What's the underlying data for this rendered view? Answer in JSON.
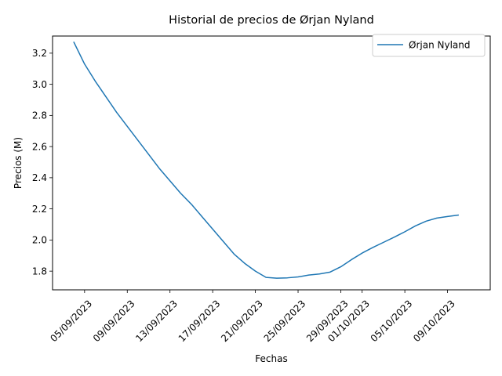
{
  "chart_data": {
    "type": "line",
    "title": "Historial de precios de Ørjan Nyland",
    "xlabel": "Fechas",
    "ylabel": "Precios (M)",
    "ylim": [
      1.68,
      3.31
    ],
    "xlim": [
      "2023-09-02",
      "2023-10-13"
    ],
    "x_tick_labels": [
      "05/09/2023",
      "09/09/2023",
      "13/09/2023",
      "17/09/2023",
      "21/09/2023",
      "25/09/2023",
      "29/09/2023",
      "01/10/2023",
      "05/10/2023",
      "09/10/2023"
    ],
    "y_ticks": [
      1.8,
      2.0,
      2.2,
      2.4,
      2.6,
      2.8,
      3.0,
      3.2
    ],
    "grid": false,
    "legend_position": "top-right",
    "series": [
      {
        "name": "Ørjan Nyland",
        "color": "#1f77b4",
        "points": [
          {
            "x": "2023-09-04",
            "y": 3.27
          },
          {
            "x": "2023-09-05",
            "y": 3.13
          },
          {
            "x": "2023-09-06",
            "y": 3.02
          },
          {
            "x": "2023-09-07",
            "y": 2.92
          },
          {
            "x": "2023-09-08",
            "y": 2.82
          },
          {
            "x": "2023-09-09",
            "y": 2.73
          },
          {
            "x": "2023-09-10",
            "y": 2.64
          },
          {
            "x": "2023-09-11",
            "y": 2.55
          },
          {
            "x": "2023-09-12",
            "y": 2.46
          },
          {
            "x": "2023-09-13",
            "y": 2.38
          },
          {
            "x": "2023-09-14",
            "y": 2.3
          },
          {
            "x": "2023-09-15",
            "y": 2.23
          },
          {
            "x": "2023-09-16",
            "y": 2.15
          },
          {
            "x": "2023-09-17",
            "y": 2.07
          },
          {
            "x": "2023-09-18",
            "y": 1.99
          },
          {
            "x": "2023-09-19",
            "y": 1.91
          },
          {
            "x": "2023-09-20",
            "y": 1.85
          },
          {
            "x": "2023-09-21",
            "y": 1.8
          },
          {
            "x": "2023-09-22",
            "y": 1.76
          },
          {
            "x": "2023-09-23",
            "y": 1.755
          },
          {
            "x": "2023-09-24",
            "y": 1.757
          },
          {
            "x": "2023-09-25",
            "y": 1.763
          },
          {
            "x": "2023-09-26",
            "y": 1.775
          },
          {
            "x": "2023-09-27",
            "y": 1.782
          },
          {
            "x": "2023-09-28",
            "y": 1.794
          },
          {
            "x": "2023-09-29",
            "y": 1.828
          },
          {
            "x": "2023-09-30",
            "y": 1.874
          },
          {
            "x": "2023-10-01",
            "y": 1.916
          },
          {
            "x": "2023-10-02",
            "y": 1.952
          },
          {
            "x": "2023-10-03",
            "y": 1.985
          },
          {
            "x": "2023-10-04",
            "y": 2.018
          },
          {
            "x": "2023-10-05",
            "y": 2.053
          },
          {
            "x": "2023-10-06",
            "y": 2.091
          },
          {
            "x": "2023-10-07",
            "y": 2.121
          },
          {
            "x": "2023-10-08",
            "y": 2.141
          },
          {
            "x": "2023-10-09",
            "y": 2.151
          },
          {
            "x": "2023-10-10",
            "y": 2.16
          }
        ]
      }
    ]
  }
}
